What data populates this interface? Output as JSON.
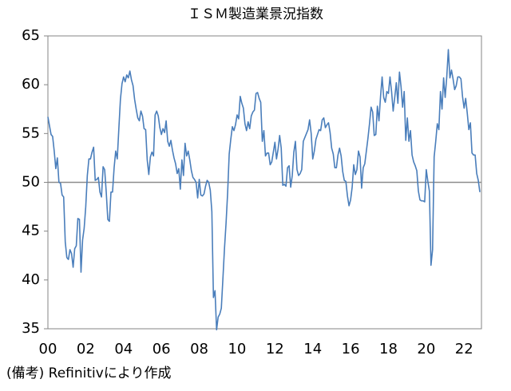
{
  "chart_data": {
    "type": "line",
    "title": "ＩＳＭ製造業景況指数",
    "note": "(備考) Refinitivにより作成",
    "categories": [
      "00",
      null,
      null,
      null,
      null,
      null,
      null,
      null,
      null,
      null,
      null,
      null,
      null,
      null,
      null,
      null,
      null,
      null,
      null,
      null,
      null,
      null,
      null,
      null,
      "02",
      null,
      null,
      null,
      null,
      null,
      null,
      null,
      null,
      null,
      null,
      null,
      null,
      null,
      null,
      null,
      null,
      null,
      null,
      null,
      null,
      null,
      null,
      null,
      "04",
      null,
      null,
      null,
      null,
      null,
      null,
      null,
      null,
      null,
      null,
      null,
      null,
      null,
      null,
      null,
      null,
      null,
      null,
      null,
      null,
      null,
      null,
      null,
      "06",
      null,
      null,
      null,
      null,
      null,
      null,
      null,
      null,
      null,
      null,
      null,
      null,
      null,
      null,
      null,
      null,
      null,
      null,
      null,
      null,
      null,
      null,
      null,
      "08",
      null,
      null,
      null,
      null,
      null,
      null,
      null,
      null,
      null,
      null,
      null,
      null,
      null,
      null,
      null,
      null,
      null,
      null,
      null,
      null,
      null,
      null,
      null,
      "10",
      null,
      null,
      null,
      null,
      null,
      null,
      null,
      null,
      null,
      null,
      null,
      null,
      null,
      null,
      null,
      null,
      null,
      null,
      null,
      null,
      null,
      null,
      null,
      "12",
      null,
      null,
      null,
      null,
      null,
      null,
      null,
      null,
      null,
      null,
      null,
      null,
      null,
      null,
      null,
      null,
      null,
      null,
      null,
      null,
      null,
      null,
      null,
      "14",
      null,
      null,
      null,
      null,
      null,
      null,
      null,
      null,
      null,
      null,
      null,
      null,
      null,
      null,
      null,
      null,
      null,
      null,
      null,
      null,
      null,
      null,
      null,
      "16",
      null,
      null,
      null,
      null,
      null,
      null,
      null,
      null,
      null,
      null,
      null,
      null,
      null,
      null,
      null,
      null,
      null,
      null,
      null,
      null,
      null,
      null,
      null,
      "18",
      null,
      null,
      null,
      null,
      null,
      null,
      null,
      null,
      null,
      null,
      null,
      null,
      null,
      null,
      null,
      null,
      null,
      null,
      null,
      null,
      null,
      null,
      null,
      "20",
      null,
      null,
      null,
      null,
      null,
      null,
      null,
      null,
      null,
      null,
      null,
      null,
      null,
      null,
      null,
      null,
      null,
      null,
      null,
      null,
      null,
      null,
      null,
      "22",
      null,
      null,
      null,
      null,
      null,
      null,
      null,
      null,
      null,
      null
    ],
    "series": [
      {
        "name": "ISM",
        "color": "#4a7ebb",
        "values": [
          56.7,
          55.8,
          54.9,
          54.7,
          53.2,
          51.4,
          52.5,
          50.0,
          49.9,
          48.7,
          48.5,
          43.9,
          42.3,
          42.1,
          43.1,
          42.7,
          41.3,
          43.2,
          43.5,
          46.3,
          46.2,
          40.8,
          44.1,
          45.3,
          47.5,
          50.7,
          52.4,
          52.4,
          53.1,
          53.6,
          50.2,
          50.3,
          50.5,
          49.0,
          48.5,
          51.6,
          51.3,
          49.0,
          46.2,
          46.0,
          49.0,
          49.0,
          51.5,
          53.2,
          52.4,
          55.5,
          58.5,
          60.1,
          60.8,
          60.3,
          61.0,
          60.7,
          61.4,
          60.5,
          59.9,
          58.5,
          57.5,
          56.6,
          56.3,
          57.3,
          56.8,
          55.5,
          55.4,
          52.3,
          50.8,
          52.6,
          53.1,
          52.7,
          56.9,
          57.3,
          56.8,
          55.6,
          54.9,
          55.5,
          55.1,
          56.3,
          54.2,
          53.7,
          54.3,
          53.3,
          52.5,
          51.9,
          50.9,
          51.4,
          49.3,
          52.3,
          50.7,
          54.0,
          52.7,
          53.2,
          52.3,
          51.2,
          50.5,
          50.3,
          50.0,
          48.4,
          50.3,
          48.7,
          48.6,
          48.8,
          49.6,
          50.2,
          50.0,
          49.2,
          47.0,
          38.2,
          38.9,
          34.9,
          36.2,
          36.5,
          37.1,
          40.1,
          43.2,
          45.8,
          48.9,
          52.9,
          54.4,
          55.7,
          55.3,
          55.9,
          56.9,
          56.5,
          58.8,
          58.1,
          57.6,
          56.0,
          55.3,
          56.2,
          55.5,
          56.8,
          57.2,
          57.4,
          59.1,
          59.2,
          58.6,
          58.2,
          54.2,
          55.3,
          52.7,
          53.0,
          53.0,
          51.8,
          52.1,
          53.1,
          54.1,
          52.4,
          53.4,
          54.8,
          53.5,
          49.7,
          49.8,
          49.6,
          51.5,
          51.7,
          49.5,
          50.7,
          53.1,
          54.2,
          51.3,
          50.7,
          50.9,
          51.3,
          54.2,
          54.6,
          55.0,
          55.4,
          56.4,
          55.0,
          52.4,
          53.2,
          54.4,
          54.9,
          55.4,
          55.3,
          56.4,
          56.6,
          55.6,
          55.9,
          56.1,
          55.1,
          53.5,
          52.9,
          51.5,
          51.5,
          52.8,
          53.5,
          52.7,
          51.1,
          50.2,
          50.1,
          48.6,
          47.6,
          48.2,
          49.5,
          51.8,
          50.8,
          51.3,
          53.2,
          52.6,
          49.4,
          51.5,
          51.9,
          53.2,
          54.5,
          56.0,
          57.7,
          57.2,
          54.8,
          54.9,
          57.8,
          56.3,
          58.8,
          60.8,
          58.7,
          58.2,
          59.3,
          59.1,
          60.8,
          59.3,
          57.3,
          58.7,
          60.2,
          58.1,
          61.3,
          59.8,
          57.7,
          59.3,
          54.3,
          56.6,
          54.2,
          55.3,
          52.8,
          52.1,
          51.7,
          51.2,
          49.1,
          48.2,
          48.1,
          48.1,
          48.0,
          51.3,
          50.1,
          49.1,
          41.5,
          43.1,
          52.6,
          54.2,
          56.0,
          55.4,
          59.3,
          57.5,
          60.7,
          58.7,
          60.8,
          63.6,
          60.7,
          61.5,
          60.6,
          59.5,
          59.9,
          60.8,
          60.8,
          60.6,
          58.8,
          57.6,
          58.6,
          57.1,
          55.4,
          56.1,
          53.0,
          52.8,
          52.8,
          50.9,
          50.2,
          49.0
        ]
      }
    ],
    "ylim": [
      35,
      65
    ],
    "yticks": [
      35,
      40,
      45,
      50,
      55,
      60,
      65
    ],
    "reference_line": 50,
    "reference_color": "#8c8c8c"
  }
}
